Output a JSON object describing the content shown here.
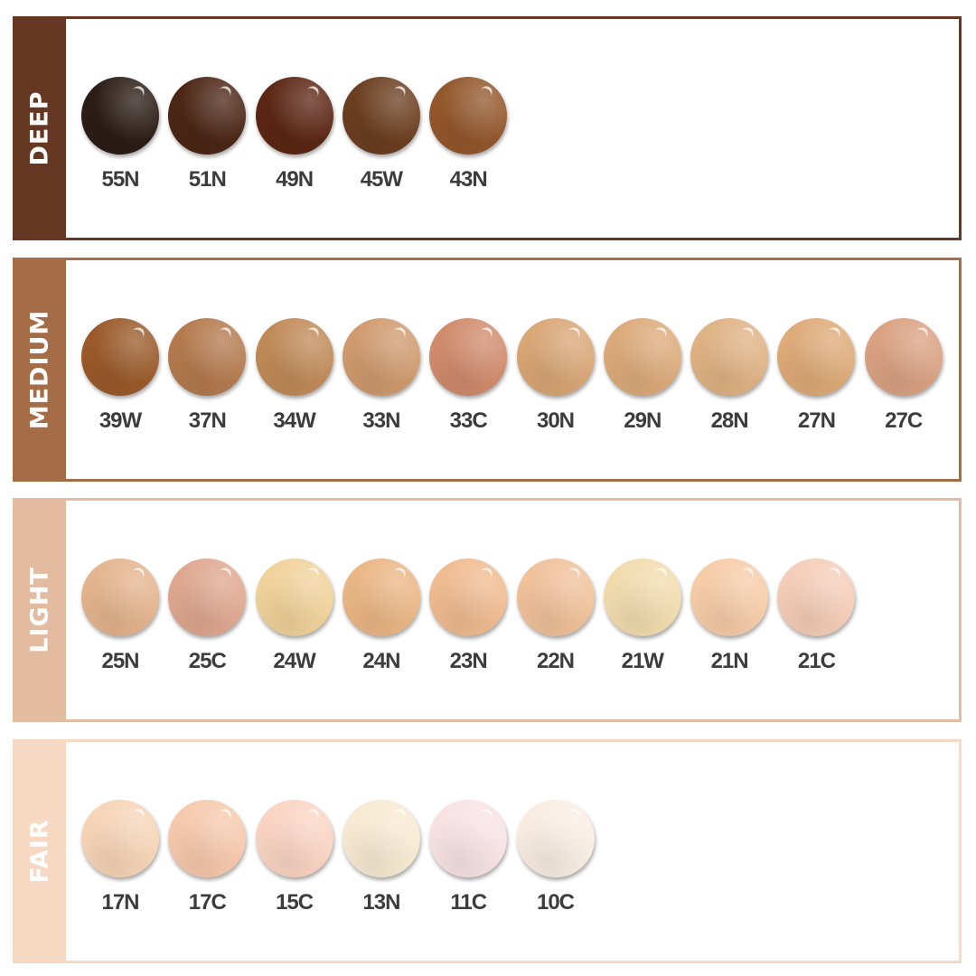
{
  "groups": [
    {
      "name": "DEEP",
      "color": "#663723",
      "shades": [
        {
          "code": "55N",
          "color": "#2b1c16"
        },
        {
          "code": "51N",
          "color": "#4b2615"
        },
        {
          "code": "49N",
          "color": "#5c2614"
        },
        {
          "code": "45W",
          "color": "#6b3e20"
        },
        {
          "code": "43N",
          "color": "#93572c"
        }
      ]
    },
    {
      "name": "MEDIUM",
      "color": "#a56d47",
      "shades": [
        {
          "code": "39W",
          "color": "#9a5a2a"
        },
        {
          "code": "37N",
          "color": "#b47a4e"
        },
        {
          "code": "34W",
          "color": "#c08a58"
        },
        {
          "code": "33N",
          "color": "#cf9a6e"
        },
        {
          "code": "33C",
          "color": "#d08b6c"
        },
        {
          "code": "30N",
          "color": "#d9a676"
        },
        {
          "code": "29N",
          "color": "#dcaa7a"
        },
        {
          "code": "28N",
          "color": "#dfb283"
        },
        {
          "code": "27N",
          "color": "#deaa78"
        },
        {
          "code": "27C",
          "color": "#daa182"
        }
      ]
    },
    {
      "name": "LIGHT",
      "color": "#e3bba0",
      "shades": [
        {
          "code": "25N",
          "color": "#e4b48d"
        },
        {
          "code": "25C",
          "color": "#dfa790"
        },
        {
          "code": "24W",
          "color": "#f0d29a"
        },
        {
          "code": "24N",
          "color": "#ebb685"
        },
        {
          "code": "23N",
          "color": "#f0bb90"
        },
        {
          "code": "22N",
          "color": "#f0c19a"
        },
        {
          "code": "21W",
          "color": "#f2dcae"
        },
        {
          "code": "21N",
          "color": "#f6cca8"
        },
        {
          "code": "21C",
          "color": "#f4cdb7"
        }
      ]
    },
    {
      "name": "FAIR",
      "color": "#f7d8c3",
      "shades": [
        {
          "code": "17N",
          "color": "#f6d4b7"
        },
        {
          "code": "17C",
          "color": "#f6c9ad"
        },
        {
          "code": "15C",
          "color": "#fad4c2"
        },
        {
          "code": "13N",
          "color": "#f8ead2"
        },
        {
          "code": "11C",
          "color": "#f8e2e4"
        },
        {
          "code": "10C",
          "color": "#f9ede2"
        }
      ]
    }
  ]
}
